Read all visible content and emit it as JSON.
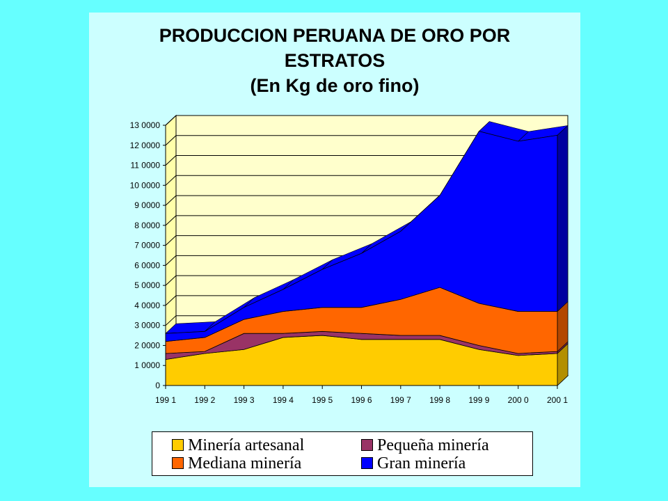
{
  "chart_data": {
    "type": "area",
    "stacked": true,
    "title": [
      "PRODUCCION PERUANA DE ORO POR",
      "ESTRATOS",
      "(En Kg de oro fino)"
    ],
    "categories": [
      "199 1",
      "199 2",
      "199 3",
      "199 4",
      "199 5",
      "199 6",
      "199 7",
      "199 8",
      "199 9",
      "200 0",
      "200 1"
    ],
    "ylim": [
      0,
      13000
    ],
    "y_ticks": [
      0,
      1000,
      2000,
      3000,
      4000,
      5000,
      6000,
      7000,
      8000,
      9000,
      10000,
      11000,
      12000,
      13000
    ],
    "y_tick_labels": [
      "0",
      "1 0000",
      "2 0000",
      "3 0000",
      "4 0000",
      "5 0000",
      "6 0000",
      "7 0000",
      "8 0000",
      "9 0000",
      "10 0000",
      "11 0000",
      "12 0000",
      "13 0000"
    ],
    "grid": true,
    "legend_position": "bottom",
    "series": [
      {
        "name": "Minería artesanal",
        "color": "#FFCC00",
        "side_color": "#B38F00",
        "values": [
          1300,
          1600,
          1800,
          2400,
          2500,
          2300,
          2300,
          2300,
          1800,
          1500,
          1600
        ]
      },
      {
        "name": "Pequeña minería",
        "color": "#993366",
        "side_color": "#6B2447",
        "values": [
          300,
          100,
          800,
          200,
          200,
          300,
          200,
          200,
          200,
          100,
          100
        ]
      },
      {
        "name": "Mediana minería",
        "color": "#FF6600",
        "side_color": "#B34700",
        "values": [
          600,
          700,
          700,
          1100,
          1200,
          1300,
          1800,
          2400,
          2100,
          2100,
          2000
        ]
      },
      {
        "name": "Gran minería",
        "color": "#0000FF",
        "side_color": "#0000A0",
        "values": [
          400,
          300,
          600,
          1100,
          1900,
          2700,
          3400,
          4600,
          8600,
          8500,
          8800
        ]
      }
    ],
    "legend_rows": [
      [
        "Minería artesanal",
        "Pequeña minería"
      ],
      [
        "Mediana minería",
        "Gran minería"
      ]
    ]
  },
  "colors": {
    "page_background": "#66FFFF",
    "panel_background": "#CCFFFF",
    "plot_wall": "#FFFFCC",
    "plot_floor": "#C0C0C0"
  }
}
